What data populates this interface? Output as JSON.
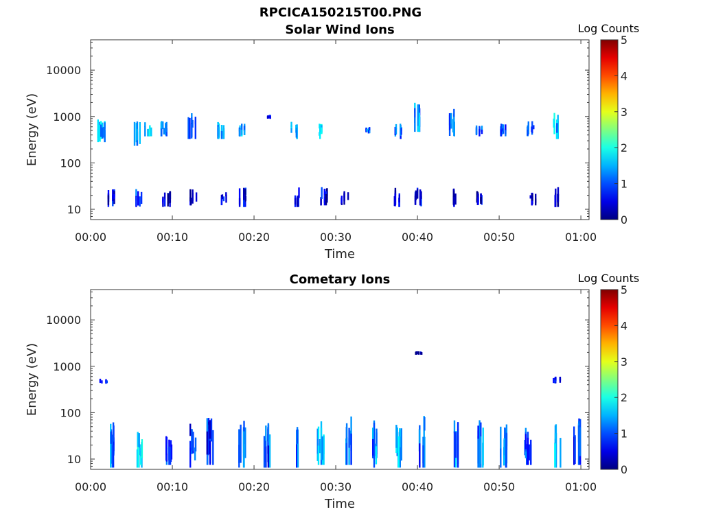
{
  "figure": {
    "title": "RPCICA150215T00.PNG"
  },
  "chart_data": [
    {
      "type": "heatmap",
      "title": "Solar Wind Ions",
      "xlabel": "Time",
      "ylabel": "Energy (eV)",
      "x_ticks": [
        "00:00",
        "00:10",
        "00:20",
        "00:30",
        "00:40",
        "00:50",
        "01:00"
      ],
      "x_tick_minutes": [
        0,
        10,
        20,
        30,
        40,
        50,
        60
      ],
      "xlim_minutes": [
        0,
        61
      ],
      "y_scale": "log",
      "ylim": [
        6,
        45000
      ],
      "y_ticks": [
        "10",
        "100",
        "1000",
        "10000"
      ],
      "y_tick_values": [
        10,
        100,
        1000,
        10000
      ],
      "colorbar": {
        "label": "Log Counts",
        "range": [
          0,
          5
        ],
        "ticks": [
          "0",
          "1",
          "2",
          "3",
          "4",
          "5"
        ]
      },
      "bursts": [
        {
          "t": 1.2,
          "e_low": 300,
          "e_high": 900,
          "c": 1.6
        },
        {
          "t": 2.5,
          "e_low": 12,
          "e_high": 28,
          "c": 0.8
        },
        {
          "t": 5.5,
          "e_low": 250,
          "e_high": 1100,
          "c": 1.5
        },
        {
          "t": 5.8,
          "e_low": 12,
          "e_high": 28,
          "c": 0.9
        },
        {
          "t": 7.0,
          "e_low": 400,
          "e_high": 800,
          "c": 1.8
        },
        {
          "t": 8.8,
          "e_low": 400,
          "e_high": 800,
          "c": 1.6
        },
        {
          "t": 9.2,
          "e_low": 12,
          "e_high": 25,
          "c": 0.6
        },
        {
          "t": 12.3,
          "e_low": 350,
          "e_high": 1300,
          "c": 1.2
        },
        {
          "t": 12.5,
          "e_low": 13,
          "e_high": 28,
          "c": 0.5
        },
        {
          "t": 15.8,
          "e_low": 350,
          "e_high": 800,
          "c": 1.7
        },
        {
          "t": 16.2,
          "e_low": 13,
          "e_high": 25,
          "c": 0.6
        },
        {
          "t": 18.5,
          "e_low": 400,
          "e_high": 700,
          "c": 1.5
        },
        {
          "t": 18.5,
          "e_low": 12,
          "e_high": 30,
          "c": 0.7
        },
        {
          "t": 21.5,
          "e_low": 950,
          "e_high": 1100,
          "c": 1.0
        },
        {
          "t": 24.8,
          "e_low": 350,
          "e_high": 800,
          "c": 1.7
        },
        {
          "t": 25.2,
          "e_low": 12,
          "e_high": 30,
          "c": 0.6
        },
        {
          "t": 28.0,
          "e_low": 350,
          "e_high": 700,
          "c": 1.8
        },
        {
          "t": 28.5,
          "e_low": 13,
          "e_high": 30,
          "c": 0.6
        },
        {
          "t": 31.0,
          "e_low": 13,
          "e_high": 25,
          "c": 0.5
        },
        {
          "t": 34.0,
          "e_low": 450,
          "e_high": 600,
          "c": 1.3
        },
        {
          "t": 37.5,
          "e_low": 350,
          "e_high": 700,
          "c": 1.4
        },
        {
          "t": 37.5,
          "e_low": 12,
          "e_high": 30,
          "c": 0.7
        },
        {
          "t": 40.0,
          "e_low": 500,
          "e_high": 2000,
          "c": 1.4
        },
        {
          "t": 40.0,
          "e_low": 12,
          "e_high": 30,
          "c": 0.6
        },
        {
          "t": 44.0,
          "e_low": 400,
          "e_high": 1500,
          "c": 1.6
        },
        {
          "t": 44.2,
          "e_low": 12,
          "e_high": 30,
          "c": 0.5
        },
        {
          "t": 47.5,
          "e_low": 400,
          "e_high": 700,
          "c": 1.3
        },
        {
          "t": 47.5,
          "e_low": 13,
          "e_high": 25,
          "c": 0.5
        },
        {
          "t": 50.5,
          "e_low": 400,
          "e_high": 700,
          "c": 1.2
        },
        {
          "t": 53.8,
          "e_low": 400,
          "e_high": 800,
          "c": 1.2
        },
        {
          "t": 54.0,
          "e_low": 13,
          "e_high": 25,
          "c": 0.4
        },
        {
          "t": 57.0,
          "e_low": 350,
          "e_high": 1500,
          "c": 1.8
        },
        {
          "t": 57.0,
          "e_low": 12,
          "e_high": 30,
          "c": 0.7
        }
      ]
    },
    {
      "type": "heatmap",
      "title": "Cometary Ions",
      "xlabel": "Time",
      "ylabel": "Energy (eV)",
      "x_ticks": [
        "00:00",
        "00:10",
        "00:20",
        "00:30",
        "00:40",
        "00:50",
        "01:00"
      ],
      "x_tick_minutes": [
        0,
        10,
        20,
        30,
        40,
        50,
        60
      ],
      "xlim_minutes": [
        0,
        61
      ],
      "y_scale": "log",
      "ylim": [
        6,
        45000
      ],
      "y_ticks": [
        "10",
        "100",
        "1000",
        "10000"
      ],
      "y_tick_values": [
        10,
        100,
        1000,
        10000
      ],
      "colorbar": {
        "label": "Log Counts",
        "range": [
          0,
          5
        ],
        "ticks": [
          "0",
          "1",
          "2",
          "3",
          "4",
          "5"
        ]
      },
      "bursts": [
        {
          "t": 1.5,
          "e_low": 450,
          "e_high": 550,
          "c": 0.8
        },
        {
          "t": 2.5,
          "e_low": 7,
          "e_high": 70,
          "c": 1.3
        },
        {
          "t": 5.8,
          "e_low": 7,
          "e_high": 40,
          "c": 1.7
        },
        {
          "t": 9.5,
          "e_low": 8,
          "e_high": 35,
          "c": 0.9
        },
        {
          "t": 12.5,
          "e_low": 7,
          "e_high": 60,
          "c": 1.1
        },
        {
          "t": 14.5,
          "e_low": 8,
          "e_high": 80,
          "c": 0.9
        },
        {
          "t": 18.5,
          "e_low": 7,
          "e_high": 80,
          "c": 1.4
        },
        {
          "t": 21.5,
          "e_low": 7,
          "e_high": 70,
          "c": 1.2
        },
        {
          "t": 25.0,
          "e_low": 7,
          "e_high": 60,
          "c": 1.3
        },
        {
          "t": 28.0,
          "e_low": 8,
          "e_high": 70,
          "c": 1.7
        },
        {
          "t": 31.5,
          "e_low": 8,
          "e_high": 90,
          "c": 1.3
        },
        {
          "t": 34.5,
          "e_low": 7,
          "e_high": 80,
          "c": 1.4
        },
        {
          "t": 37.5,
          "e_low": 7,
          "e_high": 70,
          "c": 1.5
        },
        {
          "t": 40.5,
          "e_low": 7,
          "e_high": 90,
          "c": 1.3
        },
        {
          "t": 44.5,
          "e_low": 7,
          "e_high": 80,
          "c": 1.4
        },
        {
          "t": 47.5,
          "e_low": 7,
          "e_high": 70,
          "c": 1.5
        },
        {
          "t": 50.5,
          "e_low": 7,
          "e_high": 60,
          "c": 1.3
        },
        {
          "t": 53.5,
          "e_low": 8,
          "e_high": 50,
          "c": 1.2
        },
        {
          "t": 57.0,
          "e_low": 7,
          "e_high": 60,
          "c": 1.6
        },
        {
          "t": 59.5,
          "e_low": 8,
          "e_high": 80,
          "c": 1.0
        },
        {
          "t": 40.0,
          "e_low": 1900,
          "e_high": 2100,
          "c": 0.6
        },
        {
          "t": 57.0,
          "e_low": 450,
          "e_high": 600,
          "c": 0.9
        }
      ]
    }
  ]
}
